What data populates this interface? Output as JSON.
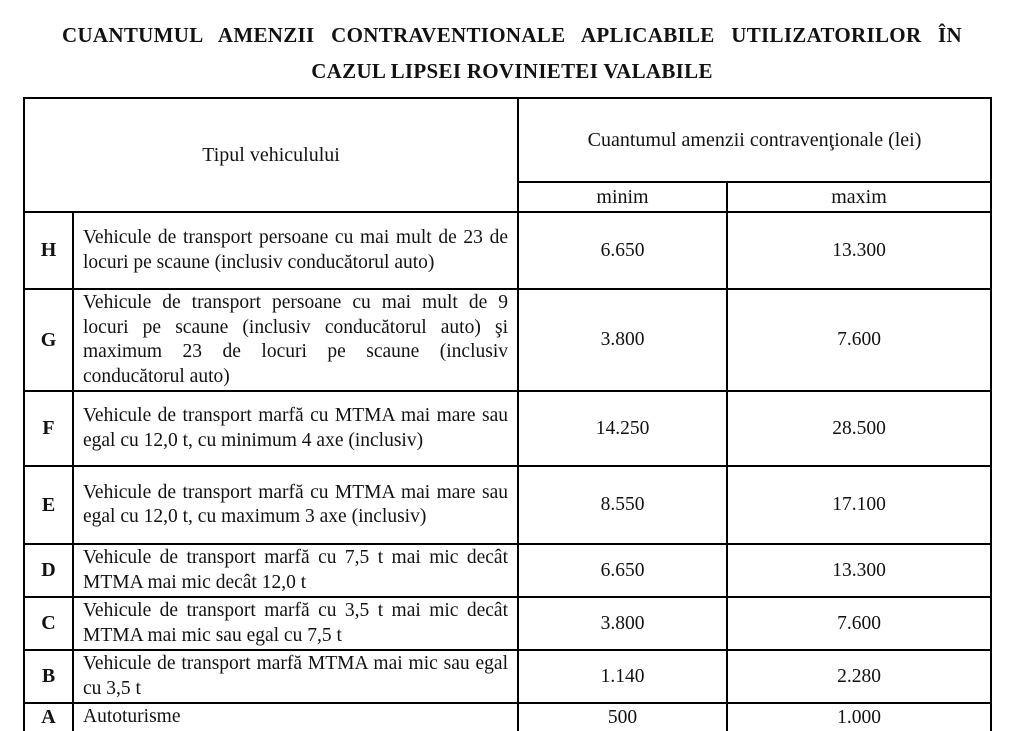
{
  "title": {
    "line1": "CUANTUMUL AMENZII CONTRAVENTIONALE APLICABILE UTILIZATORILOR ÎN",
    "line2": "CAZUL LIPSEI ROVINIETEI VALABILE"
  },
  "table": {
    "header": {
      "vehicle_type": "Tipul vehiculului",
      "fine_amount": "Cuantumul amenzii contravenţionale (lei)",
      "min": "minim",
      "max": "maxim"
    },
    "rows": [
      {
        "code": "H",
        "description": "Vehicule de transport persoane cu mai mult de 23 de locuri pe scaune (inclusiv conducătorul auto)",
        "min": "6.650",
        "max": "13.300"
      },
      {
        "code": "G",
        "description": "Vehicule de transport persoane cu mai mult de 9 locuri pe scaune (inclusiv conducătorul auto) şi maximum 23 de locuri pe scaune (inclusiv conducătorul auto)",
        "min": "3.800",
        "max": "7.600"
      },
      {
        "code": "F",
        "description": "Vehicule de transport marfă cu MTMA mai mare sau egal cu 12,0 t, cu minimum 4 axe (inclusiv)",
        "min": "14.250",
        "max": "28.500"
      },
      {
        "code": "E",
        "description": "Vehicule de transport marfă cu MTMA mai mare sau egal cu 12,0 t, cu maximum 3 axe (inclusiv)",
        "min": "8.550",
        "max": "17.100"
      },
      {
        "code": "D",
        "description": "Vehicule de transport marfă cu 7,5 t mai mic decât MTMA mai mic decât 12,0 t",
        "min": "6.650",
        "max": "13.300"
      },
      {
        "code": "C",
        "description": "Vehicule de transport marfă cu 3,5 t mai mic decât MTMA mai mic sau egal cu 7,5 t",
        "min": "3.800",
        "max": "7.600"
      },
      {
        "code": "B",
        "description": "Vehicule de transport marfă MTMA mai mic sau egal cu 3,5 t",
        "min": "1.140",
        "max": "2.280"
      },
      {
        "code": "A",
        "description": "Autoturisme",
        "min": "500",
        "max": "1.000"
      }
    ]
  }
}
